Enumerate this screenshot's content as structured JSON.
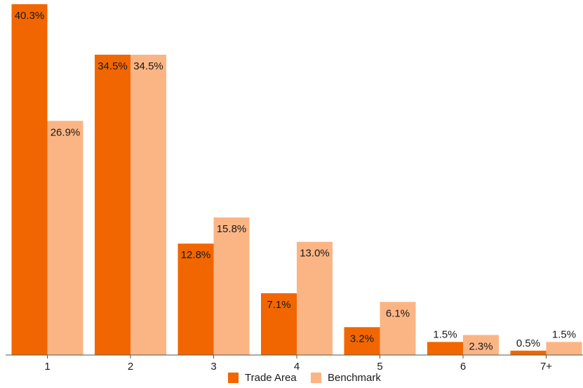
{
  "chart_data": {
    "type": "bar",
    "categories": [
      "1",
      "2",
      "3",
      "4",
      "5",
      "6",
      "7+"
    ],
    "series": [
      {
        "name": "Trade Area",
        "values": [
          40.3,
          34.5,
          12.8,
          7.1,
          3.2,
          1.5,
          0.5
        ],
        "color": "#f26600"
      },
      {
        "name": "Benchmark",
        "values": [
          26.9,
          34.5,
          15.8,
          13.0,
          6.1,
          2.3,
          1.5
        ],
        "color": "#fbb584"
      }
    ],
    "value_suffix": "%",
    "ylim": [
      0,
      40.3
    ],
    "grid": false,
    "legend_position": "bottom-center"
  }
}
